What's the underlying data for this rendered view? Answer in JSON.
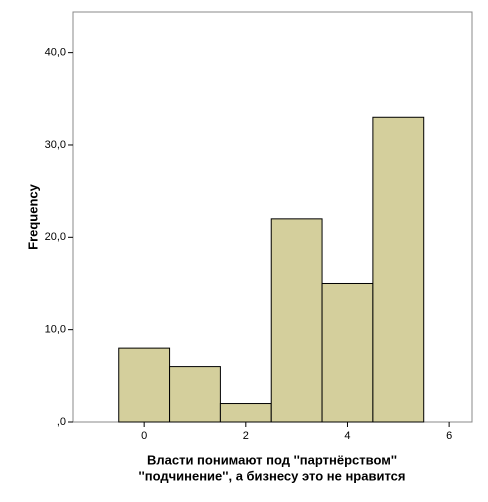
{
  "chart_data": {
    "type": "histogram",
    "bins": [
      -0.5,
      0.5,
      1.5,
      2.5,
      3.5,
      4.5,
      5.5
    ],
    "counts": [
      8,
      6,
      2,
      22,
      15,
      33
    ],
    "color": "#d4cf9c",
    "xlim": [
      -1.4,
      6.45
    ],
    "xticks": [
      0,
      2,
      4,
      6
    ],
    "ylim": [
      0,
      44.4
    ],
    "yticks": [
      {
        "value": 0,
        "label": ",0"
      },
      {
        "value": 10,
        "label": "10,0"
      },
      {
        "value": 20,
        "label": "20,0"
      },
      {
        "value": 30,
        "label": "30,0"
      },
      {
        "value": 40,
        "label": "40,0"
      }
    ],
    "ylabel": "Frequency",
    "xlabel": [
      "Власти понимают под ''партнёрством''",
      "''подчинение'', а бизнесу это не нравится"
    ]
  }
}
